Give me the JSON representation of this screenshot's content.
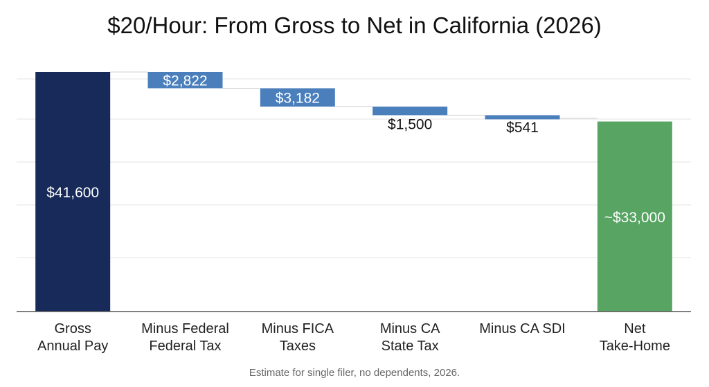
{
  "chart_data": {
    "type": "waterfall",
    "title": "$20/Hour: From Gross to Net in California (2026)",
    "footnote": "Estimate for single filer, no dependents, 2026.",
    "ylim": [
      0,
      44000
    ],
    "grid": true,
    "categories": [
      [
        "Gross",
        "Annual Pay"
      ],
      [
        "Minus Federal",
        "Federal Tax"
      ],
      [
        "Minus FICA",
        "Taxes"
      ],
      [
        "Minus CA",
        "State Tax"
      ],
      [
        "Minus CA SDI"
      ],
      [
        "Net",
        "Take-Home"
      ]
    ],
    "steps": [
      {
        "kind": "total",
        "value": 41600,
        "label": "$41,600"
      },
      {
        "kind": "decrease",
        "value": 2822,
        "label": "$2,822"
      },
      {
        "kind": "decrease",
        "value": 3182,
        "label": "$3,182"
      },
      {
        "kind": "decrease",
        "value": 1500,
        "label": "$1,500"
      },
      {
        "kind": "decrease",
        "value": 541,
        "label": "$541"
      },
      {
        "kind": "total",
        "value": 33000,
        "label": "~$33,000"
      }
    ],
    "colors": {
      "gross": "#172a5a",
      "decrease": "#4a7fbc",
      "net": "#57a463",
      "grid": "#e3e3e3",
      "axis": "#555555",
      "connector": "#d0d0d0"
    }
  }
}
